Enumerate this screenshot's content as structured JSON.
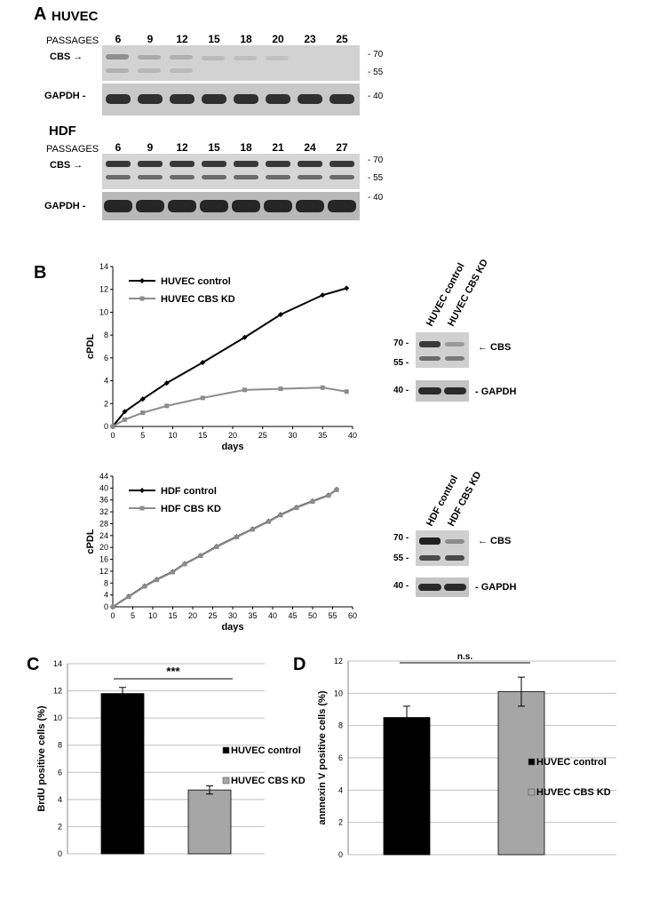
{
  "panel_a": {
    "label": "A",
    "huvec": {
      "title": "HUVEC",
      "passages_label": "PASSAGES",
      "passages": [
        "6",
        "9",
        "12",
        "15",
        "18",
        "20",
        "23",
        "25"
      ],
      "cbs_label": "CBS →",
      "gapdh_label": "GAPDH -",
      "mw_cbs": [
        "- 70",
        "- 55"
      ],
      "mw_gapdh": [
        "- 40"
      ]
    },
    "hdf": {
      "title": "HDF",
      "passages_label": "PASSAGES",
      "passages": [
        "6",
        "9",
        "12",
        "15",
        "18",
        "21",
        "24",
        "27"
      ],
      "cbs_label": "CBS →",
      "gapdh_label": "GAPDH -",
      "mw_cbs": [
        "- 70",
        "- 55"
      ],
      "mw_gapdh": [
        "- 40"
      ]
    }
  },
  "panel_b": {
    "label": "B",
    "blot1": {
      "lanes": [
        "HUVEC control",
        "HUVEC CBS KD"
      ],
      "mw70": "70 -",
      "mw55": "55 -",
      "mw40": "40 -",
      "cbs": "← CBS",
      "gapdh": "- GAPDH"
    },
    "blot2": {
      "lanes": [
        "HDF control",
        "HDF CBS KD"
      ],
      "mw70": "70 -",
      "mw55": "55 -",
      "mw40": "40 -",
      "cbs": "← CBS",
      "gapdh": "- GAPDH"
    }
  },
  "panel_c": {
    "label": "C"
  },
  "panel_d": {
    "label": "D"
  },
  "colors": {
    "control": "#000000",
    "kd": "#a6a6a6",
    "grid": "#bfbfbf",
    "kd_line": "#8c8c8c"
  },
  "chart_data": [
    {
      "id": "b-huvec",
      "type": "line",
      "xlabel": "days",
      "ylabel": "cPDL",
      "xlim": [
        0,
        40
      ],
      "ylim": [
        0,
        14
      ],
      "xticks": [
        0,
        5,
        10,
        15,
        20,
        25,
        30,
        35,
        40
      ],
      "yticks": [
        0,
        2,
        4,
        6,
        8,
        10,
        12,
        14
      ],
      "series": [
        {
          "name": "HUVEC control",
          "x": [
            0,
            2,
            5,
            9,
            15,
            22,
            28,
            35,
            39
          ],
          "y": [
            0,
            1.3,
            2.4,
            3.8,
            5.6,
            7.8,
            9.8,
            11.5,
            12.1
          ]
        },
        {
          "name": "HUVEC CBS KD",
          "x": [
            0,
            2,
            5,
            9,
            15,
            22,
            28,
            35,
            39
          ],
          "y": [
            0,
            0.6,
            1.2,
            1.8,
            2.5,
            3.2,
            3.3,
            3.4,
            3.05
          ]
        }
      ]
    },
    {
      "id": "b-hdf",
      "type": "line",
      "xlabel": "days",
      "ylabel": "cPDL",
      "xlim": [
        0,
        60
      ],
      "ylim": [
        0,
        44
      ],
      "xticks": [
        0,
        5,
        10,
        15,
        20,
        25,
        30,
        35,
        40,
        45,
        50,
        55,
        60
      ],
      "yticks": [
        0,
        4,
        8,
        12,
        16,
        20,
        24,
        28,
        32,
        36,
        40,
        44
      ],
      "series": [
        {
          "name": "HDF control",
          "x": [
            0,
            4,
            8,
            11,
            15,
            18,
            22,
            26,
            31,
            35,
            39,
            42,
            46,
            50,
            54,
            56
          ],
          "y": [
            0,
            3.5,
            7,
            9.2,
            11.8,
            14.5,
            17.3,
            20.3,
            23.6,
            26.2,
            28.8,
            31,
            33.5,
            35.6,
            37.6,
            39.5
          ]
        },
        {
          "name": "HDF CBS KD",
          "x": [
            0,
            4,
            8,
            11,
            15,
            18,
            22,
            26,
            31,
            35,
            39,
            42,
            46,
            50,
            54,
            56
          ],
          "y": [
            0,
            3.4,
            6.9,
            9.1,
            11.7,
            14.4,
            17.2,
            20.2,
            23.5,
            26.1,
            28.7,
            30.9,
            33.4,
            35.5,
            37.5,
            39.4
          ]
        }
      ]
    },
    {
      "id": "c-brdu",
      "type": "bar",
      "ylabel": "BrdU positive cells (%)",
      "ylim": [
        0,
        14
      ],
      "yticks": [
        0,
        2,
        4,
        6,
        8,
        10,
        12,
        14
      ],
      "categories": [
        "HUVEC control",
        "HUVEC CBS KD"
      ],
      "values": [
        11.8,
        4.7
      ],
      "errors": [
        0.45,
        0.3
      ],
      "significance": "***"
    },
    {
      "id": "d-annexin",
      "type": "bar",
      "ylabel": "annnexin V positive cells (%)",
      "ylim": [
        0,
        12
      ],
      "yticks": [
        0,
        2,
        4,
        6,
        8,
        10,
        12
      ],
      "categories": [
        "HUVEC control",
        "HUVEC CBS KD"
      ],
      "values": [
        8.5,
        10.1
      ],
      "errors": [
        0.7,
        0.9
      ],
      "significance": "n.s."
    }
  ]
}
